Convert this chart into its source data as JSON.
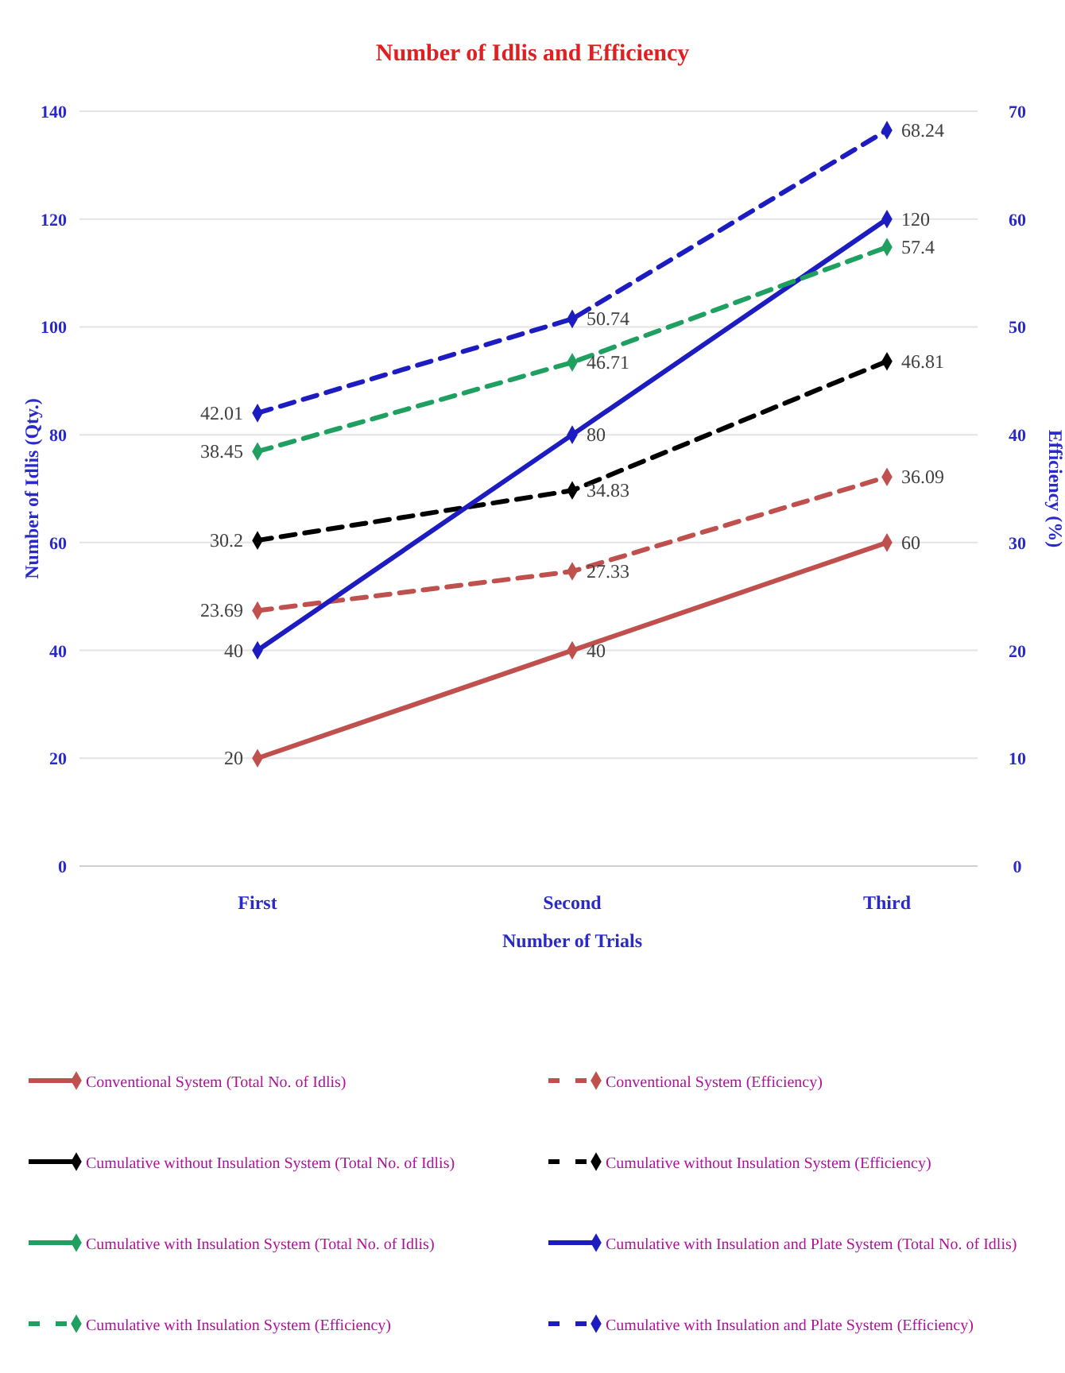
{
  "chart_data": {
    "type": "line",
    "title": "Number of Idlis and Efficiency",
    "xlabel": "Number of Trials",
    "ylabel": "Number of Idlis (Qty.)",
    "y2label": "Efficiency (%)",
    "categories": [
      "First",
      "Second",
      "Third"
    ],
    "series": [
      {
        "name": "Conventional System (Total No. of Idlis)",
        "color": "#c0504d",
        "values": [
          20,
          40,
          60
        ],
        "line_style": "solid"
      },
      {
        "name": "Conventional System (Efficiency)",
        "color": "#c0504d",
        "values": [
          23.69,
          27.33,
          36.09
        ],
        "axis": "y2",
        "line_style": "dashed"
      },
      {
        "name": "Cumulative without Insulation System (Total No. of Idlis)",
        "color": "#000000",
        "values": [
          null,
          null,
          null
        ],
        "line_style": "solid"
      },
      {
        "name": "Cumulative without Insulation System (Efficiency)",
        "color": "#000000",
        "values": [
          30.2,
          34.83,
          46.81
        ],
        "axis": "y2",
        "line_style": "dashed"
      },
      {
        "name": "Cumulative with Insulation System (Total No. of Idlis)",
        "color": "#1fa060",
        "values": [
          null,
          null,
          null
        ],
        "line_style": "solid"
      },
      {
        "name": "Cumulative with Insulation and Plate System (Total No. of Idlis)",
        "color": "#1c1cc0",
        "values": [
          40,
          80,
          120
        ],
        "line_style": "solid"
      },
      {
        "name": "Cumulative with Insulation System (Efficiency)",
        "color": "#1fa060",
        "values": [
          38.45,
          46.71,
          57.4
        ],
        "axis": "y2",
        "line_style": "dashed"
      },
      {
        "name": "Cumulative with Insulation and Plate System (Efficiency)",
        "color": "#1c1cc0",
        "values": [
          42.01,
          50.74,
          68.24
        ],
        "axis": "y2",
        "line_style": "dashed"
      }
    ],
    "ylim": [
      0,
      140
    ],
    "yticks": [
      0,
      20,
      40,
      60,
      80,
      100,
      120,
      140
    ],
    "y2lim": [
      0,
      70
    ],
    "y2ticks": [
      0,
      10,
      20,
      30,
      40,
      50,
      60,
      70
    ],
    "grid": "y",
    "legend": "bottom",
    "marker": "diamond",
    "data_labels": true
  }
}
